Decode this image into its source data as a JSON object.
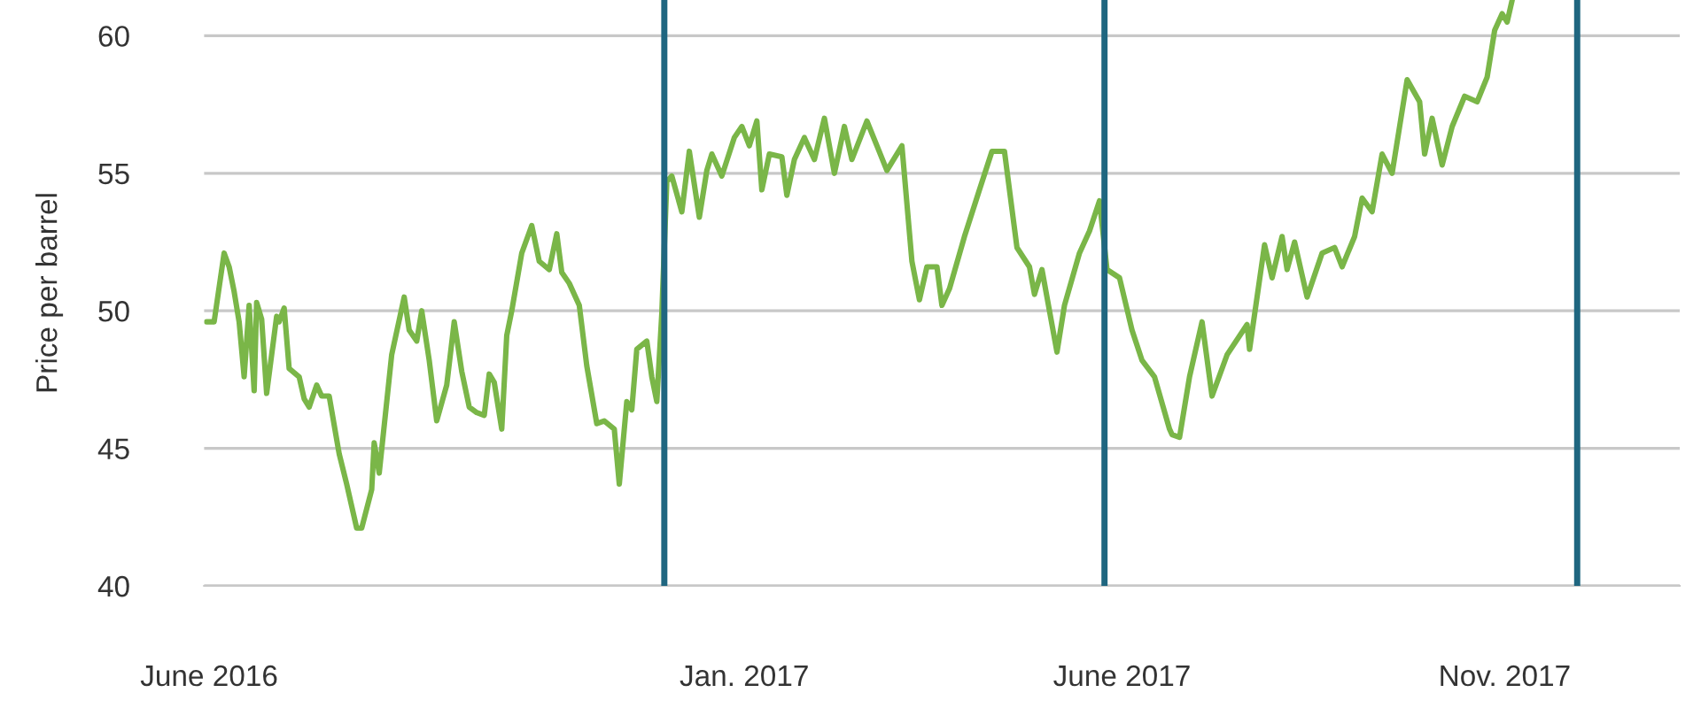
{
  "chart_data": {
    "type": "line",
    "ylabel": "Price per barrel",
    "xlim": [
      "2016-05-30",
      "2018-01-10"
    ],
    "ylim": [
      40,
      61.3
    ],
    "xticks": [
      {
        "value": "2016-06-01",
        "label": "June 2016"
      },
      {
        "value": "2017-01-01",
        "label": "Jan. 2017"
      },
      {
        "value": "2017-06-01",
        "label": "June 2017"
      },
      {
        "value": "2017-11-01",
        "label": "Nov. 2017"
      }
    ],
    "yticks": [
      40,
      45,
      50,
      55,
      60
    ],
    "grid": "y",
    "legend": false,
    "marker": "none",
    "line_style": "solid",
    "ref_lines": [
      {
        "axis": "x",
        "value": "2016-11-30",
        "color": "#1f6680"
      },
      {
        "axis": "x",
        "value": "2017-05-25",
        "color": "#1f6680"
      },
      {
        "axis": "x",
        "value": "2017-11-30",
        "color": "#1f6680"
      }
    ],
    "series": [
      {
        "color": "#7ab648",
        "x": [
          "2016-05-31",
          "2016-06-03",
          "2016-06-07",
          "2016-06-09",
          "2016-06-11",
          "2016-06-13",
          "2016-06-15",
          "2016-06-17",
          "2016-06-19",
          "2016-06-20",
          "2016-06-22",
          "2016-06-24",
          "2016-06-28",
          "2016-06-29",
          "2016-07-01",
          "2016-07-03",
          "2016-07-07",
          "2016-07-09",
          "2016-07-11",
          "2016-07-14",
          "2016-07-16",
          "2016-07-19",
          "2016-07-23",
          "2016-07-26",
          "2016-07-30",
          "2016-08-01",
          "2016-08-05",
          "2016-08-06",
          "2016-08-08",
          "2016-08-13",
          "2016-08-18",
          "2016-08-20",
          "2016-08-23",
          "2016-08-25",
          "2016-08-28",
          "2016-08-31",
          "2016-09-04",
          "2016-09-07",
          "2016-09-10",
          "2016-09-13",
          "2016-09-16",
          "2016-09-19",
          "2016-09-21",
          "2016-09-23",
          "2016-09-26",
          "2016-09-28",
          "2016-09-30",
          "2016-10-04",
          "2016-10-08",
          "2016-10-11",
          "2016-10-15",
          "2016-10-18",
          "2016-10-20",
          "2016-10-23",
          "2016-10-27",
          "2016-10-30",
          "2016-11-03",
          "2016-11-06",
          "2016-11-10",
          "2016-11-12",
          "2016-11-15",
          "2016-11-17",
          "2016-11-19",
          "2016-11-23",
          "2016-11-25",
          "2016-11-27",
          "2016-11-29",
          "2016-12-01",
          "2016-12-03",
          "2016-12-07",
          "2016-12-10",
          "2016-12-14",
          "2016-12-17",
          "2016-12-19",
          "2016-12-23",
          "2016-12-28",
          "2016-12-31",
          "2017-01-03",
          "2017-01-06",
          "2017-01-08",
          "2017-01-11",
          "2017-01-16",
          "2017-01-18",
          "2017-01-21",
          "2017-01-25",
          "2017-01-29",
          "2017-02-02",
          "2017-02-06",
          "2017-02-10",
          "2017-02-13",
          "2017-02-19",
          "2017-02-23",
          "2017-02-27",
          "2017-03-05",
          "2017-03-09",
          "2017-03-12",
          "2017-03-15",
          "2017-03-19",
          "2017-03-21",
          "2017-03-24",
          "2017-03-30",
          "2017-04-05",
          "2017-04-10",
          "2017-04-15",
          "2017-04-20",
          "2017-04-25",
          "2017-04-27",
          "2017-04-30",
          "2017-05-06",
          "2017-05-09",
          "2017-05-15",
          "2017-05-19",
          "2017-05-23",
          "2017-05-26",
          "2017-05-31",
          "2017-06-05",
          "2017-06-09",
          "2017-06-14",
          "2017-06-20",
          "2017-06-21",
          "2017-06-24",
          "2017-06-28",
          "2017-07-03",
          "2017-07-07",
          "2017-07-13",
          "2017-07-21",
          "2017-07-22",
          "2017-07-28",
          "2017-07-31",
          "2017-08-04",
          "2017-08-06",
          "2017-08-09",
          "2017-08-14",
          "2017-08-20",
          "2017-08-25",
          "2017-08-28",
          "2017-09-02",
          "2017-09-05",
          "2017-09-09",
          "2017-09-13",
          "2017-09-17",
          "2017-09-23",
          "2017-09-28",
          "2017-09-30",
          "2017-10-03",
          "2017-10-07",
          "2017-10-11",
          "2017-10-16",
          "2017-10-21",
          "2017-10-25",
          "2017-10-28",
          "2017-10-31",
          "2017-11-02",
          "2017-11-04"
        ],
        "values": [
          49.6,
          49.6,
          52.1,
          51.6,
          50.7,
          49.6,
          47.6,
          50.2,
          47.1,
          50.3,
          49.7,
          47.0,
          49.8,
          49.6,
          50.1,
          47.9,
          47.6,
          46.8,
          46.5,
          47.3,
          46.9,
          46.9,
          44.8,
          43.7,
          42.1,
          42.1,
          43.5,
          45.2,
          44.1,
          48.4,
          50.5,
          49.3,
          48.9,
          50.0,
          48.2,
          46.0,
          47.3,
          49.6,
          47.8,
          46.5,
          46.3,
          46.2,
          47.7,
          47.4,
          45.7,
          49.1,
          50.0,
          52.1,
          53.1,
          51.8,
          51.5,
          52.8,
          51.4,
          51.0,
          50.2,
          48.0,
          45.9,
          46.0,
          45.7,
          43.7,
          46.7,
          46.4,
          48.6,
          48.9,
          47.6,
          46.7,
          49.9,
          54.7,
          54.9,
          53.6,
          55.8,
          53.4,
          55.1,
          55.7,
          54.9,
          56.3,
          56.7,
          56.0,
          56.9,
          54.4,
          55.7,
          55.6,
          54.2,
          55.5,
          56.3,
          55.5,
          57.0,
          55.0,
          56.7,
          55.5,
          56.9,
          56.0,
          55.1,
          56.0,
          51.8,
          50.4,
          51.6,
          51.6,
          50.2,
          50.8,
          52.7,
          54.4,
          55.8,
          55.8,
          52.3,
          51.6,
          50.6,
          51.5,
          48.5,
          50.2,
          52.1,
          52.9,
          54.0,
          51.5,
          51.2,
          49.3,
          48.2,
          47.6,
          45.7,
          45.5,
          45.4,
          47.6,
          49.6,
          46.9,
          48.4,
          49.5,
          48.6,
          52.4,
          51.2,
          52.7,
          51.5,
          52.5,
          50.5,
          52.1,
          52.3,
          51.6,
          52.7,
          54.1,
          53.6,
          55.7,
          55.0,
          58.4,
          57.6,
          55.7,
          57.0,
          55.3,
          56.7,
          57.8,
          57.6,
          58.5,
          60.2,
          60.8,
          60.5,
          61.3
        ]
      }
    ]
  }
}
